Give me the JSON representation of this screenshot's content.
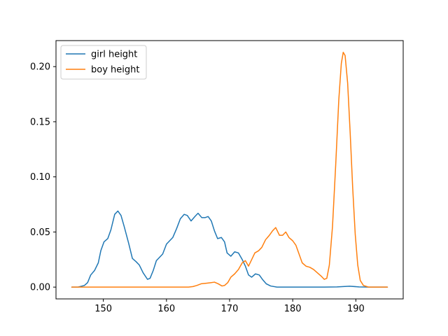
{
  "chart_data": {
    "type": "line",
    "title": "",
    "xlabel": "",
    "ylabel": "",
    "xlim": [
      142.5,
      197.5
    ],
    "ylim": [
      -0.0107,
      0.2236
    ],
    "xticks": [
      150,
      160,
      170,
      180,
      190
    ],
    "yticks": [
      0.0,
      0.05,
      0.1,
      0.15,
      0.2
    ],
    "ytick_labels": [
      "0.00",
      "0.05",
      "0.10",
      "0.15",
      "0.20"
    ],
    "grid": false,
    "legend_position": "top-left",
    "series": [
      {
        "name": "girl height",
        "color": "#1f77b4",
        "points": [
          [
            145,
            0.0
          ],
          [
            146,
            0.0
          ],
          [
            147,
            0.0015
          ],
          [
            147.5,
            0.004
          ],
          [
            148,
            0.011
          ],
          [
            148.6,
            0.015
          ],
          [
            149.2,
            0.022
          ],
          [
            149.6,
            0.033
          ],
          [
            150.1,
            0.041
          ],
          [
            150.7,
            0.044
          ],
          [
            151.2,
            0.052
          ],
          [
            151.8,
            0.066
          ],
          [
            152.3,
            0.069
          ],
          [
            152.8,
            0.065
          ],
          [
            153.3,
            0.055
          ],
          [
            154.0,
            0.04
          ],
          [
            154.6,
            0.026
          ],
          [
            155.2,
            0.023
          ],
          [
            155.7,
            0.02
          ],
          [
            156.3,
            0.013
          ],
          [
            157.0,
            0.007
          ],
          [
            157.4,
            0.008
          ],
          [
            157.9,
            0.015
          ],
          [
            158.4,
            0.024
          ],
          [
            158.9,
            0.027
          ],
          [
            159.4,
            0.03
          ],
          [
            160.0,
            0.039
          ],
          [
            160.5,
            0.042
          ],
          [
            161.0,
            0.045
          ],
          [
            161.6,
            0.053
          ],
          [
            162.2,
            0.062
          ],
          [
            162.8,
            0.066
          ],
          [
            163.3,
            0.065
          ],
          [
            163.9,
            0.06
          ],
          [
            164.5,
            0.064
          ],
          [
            165.0,
            0.067
          ],
          [
            165.6,
            0.063
          ],
          [
            166.1,
            0.063
          ],
          [
            166.6,
            0.064
          ],
          [
            167.1,
            0.06
          ],
          [
            167.6,
            0.051
          ],
          [
            168.1,
            0.044
          ],
          [
            168.7,
            0.045
          ],
          [
            169.2,
            0.041
          ],
          [
            169.6,
            0.031
          ],
          [
            170.2,
            0.028
          ],
          [
            170.8,
            0.032
          ],
          [
            171.4,
            0.031
          ],
          [
            172.0,
            0.025
          ],
          [
            172.5,
            0.019
          ],
          [
            173.0,
            0.011
          ],
          [
            173.5,
            0.009
          ],
          [
            174.1,
            0.012
          ],
          [
            174.7,
            0.011
          ],
          [
            175.2,
            0.007
          ],
          [
            175.8,
            0.003
          ],
          [
            176.5,
            0.001
          ],
          [
            177.5,
            0.0
          ],
          [
            185,
            0.0
          ],
          [
            187,
            0.0002
          ],
          [
            189,
            0.0008
          ],
          [
            190.5,
            0.0002
          ],
          [
            192,
            0.0
          ],
          [
            195,
            0.0
          ]
        ]
      },
      {
        "name": "boy height",
        "color": "#ff7f0e",
        "points": [
          [
            145,
            0.0
          ],
          [
            155,
            0.0
          ],
          [
            163.5,
            0.0
          ],
          [
            164.2,
            0.0005
          ],
          [
            164.8,
            0.0015
          ],
          [
            165.5,
            0.003
          ],
          [
            166.3,
            0.0035
          ],
          [
            167.0,
            0.004
          ],
          [
            167.6,
            0.0045
          ],
          [
            168.2,
            0.003
          ],
          [
            168.8,
            0.001
          ],
          [
            169.2,
            0.0015
          ],
          [
            169.7,
            0.004
          ],
          [
            170.2,
            0.009
          ],
          [
            170.8,
            0.012
          ],
          [
            171.4,
            0.016
          ],
          [
            172.0,
            0.022
          ],
          [
            172.5,
            0.024
          ],
          [
            173.0,
            0.019
          ],
          [
            173.5,
            0.025
          ],
          [
            174.0,
            0.031
          ],
          [
            174.6,
            0.033
          ],
          [
            175.1,
            0.036
          ],
          [
            175.7,
            0.043
          ],
          [
            176.3,
            0.047
          ],
          [
            176.8,
            0.051
          ],
          [
            177.3,
            0.054
          ],
          [
            177.9,
            0.047
          ],
          [
            178.4,
            0.047
          ],
          [
            178.9,
            0.05
          ],
          [
            179.4,
            0.045
          ],
          [
            180.0,
            0.042
          ],
          [
            180.5,
            0.038
          ],
          [
            181.0,
            0.03
          ],
          [
            181.5,
            0.022
          ],
          [
            182.1,
            0.019
          ],
          [
            182.7,
            0.018
          ],
          [
            183.3,
            0.016
          ],
          [
            183.9,
            0.013
          ],
          [
            184.5,
            0.01
          ],
          [
            185.0,
            0.007
          ],
          [
            185.4,
            0.008
          ],
          [
            185.8,
            0.02
          ],
          [
            186.3,
            0.055
          ],
          [
            186.8,
            0.11
          ],
          [
            187.3,
            0.17
          ],
          [
            187.7,
            0.203
          ],
          [
            188.0,
            0.213
          ],
          [
            188.3,
            0.21
          ],
          [
            188.7,
            0.185
          ],
          [
            189.1,
            0.14
          ],
          [
            189.5,
            0.09
          ],
          [
            189.9,
            0.048
          ],
          [
            190.3,
            0.02
          ],
          [
            190.7,
            0.006
          ],
          [
            191.2,
            0.0015
          ],
          [
            192,
            0.0
          ],
          [
            195,
            0.0
          ]
        ]
      }
    ]
  }
}
